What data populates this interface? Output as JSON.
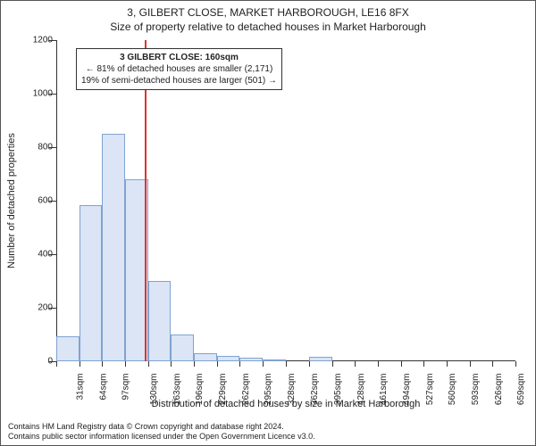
{
  "title": "3, GILBERT CLOSE, MARKET HARBOROUGH, LE16 8FX",
  "subtitle": "Size of property relative to detached houses in Market Harborough",
  "ylabel": "Number of detached properties",
  "xlabel": "Distribution of detached houses by size in Market Harborough",
  "footer_line1": "Contains HM Land Registry data © Crown copyright and database right 2024.",
  "footer_line2": "Contains public sector information licensed under the Open Government Licence v3.0.",
  "chart": {
    "type": "histogram",
    "background_color": "#ffffff",
    "axis_color": "#333333",
    "bar_fill": "#dbe5f5",
    "bar_stroke": "#7fa3d1",
    "bar_stroke_width": 1,
    "marker_color": "#dd3333",
    "marker_value": 160,
    "ylim": [
      0,
      1200
    ],
    "ytick_step": 200,
    "x_ticks": [
      31,
      64,
      97,
      130,
      163,
      196,
      229,
      262,
      295,
      328,
      362,
      395,
      428,
      461,
      494,
      527,
      560,
      593,
      626,
      659,
      692
    ],
    "x_tick_suffix": "sqm",
    "bins": [
      {
        "start": 31,
        "end": 64,
        "count": 95
      },
      {
        "start": 64,
        "end": 97,
        "count": 585
      },
      {
        "start": 97,
        "end": 130,
        "count": 850
      },
      {
        "start": 130,
        "end": 163,
        "count": 680
      },
      {
        "start": 163,
        "end": 196,
        "count": 300
      },
      {
        "start": 196,
        "end": 229,
        "count": 100
      },
      {
        "start": 229,
        "end": 262,
        "count": 30
      },
      {
        "start": 262,
        "end": 295,
        "count": 20
      },
      {
        "start": 295,
        "end": 328,
        "count": 12
      },
      {
        "start": 328,
        "end": 362,
        "count": 8
      },
      {
        "start": 362,
        "end": 395,
        "count": 0
      },
      {
        "start": 395,
        "end": 428,
        "count": 18
      },
      {
        "start": 428,
        "end": 461,
        "count": 0
      },
      {
        "start": 461,
        "end": 494,
        "count": 0
      },
      {
        "start": 494,
        "end": 527,
        "count": 0
      },
      {
        "start": 527,
        "end": 560,
        "count": 0
      },
      {
        "start": 560,
        "end": 593,
        "count": 0
      },
      {
        "start": 593,
        "end": 626,
        "count": 0
      },
      {
        "start": 626,
        "end": 659,
        "count": 0
      },
      {
        "start": 659,
        "end": 692,
        "count": 0
      }
    ]
  },
  "info_box": {
    "title": "3 GILBERT CLOSE: 160sqm",
    "line1": "← 81% of detached houses are smaller (2,171)",
    "line2": "19% of semi-detached houses are larger (501) →"
  }
}
